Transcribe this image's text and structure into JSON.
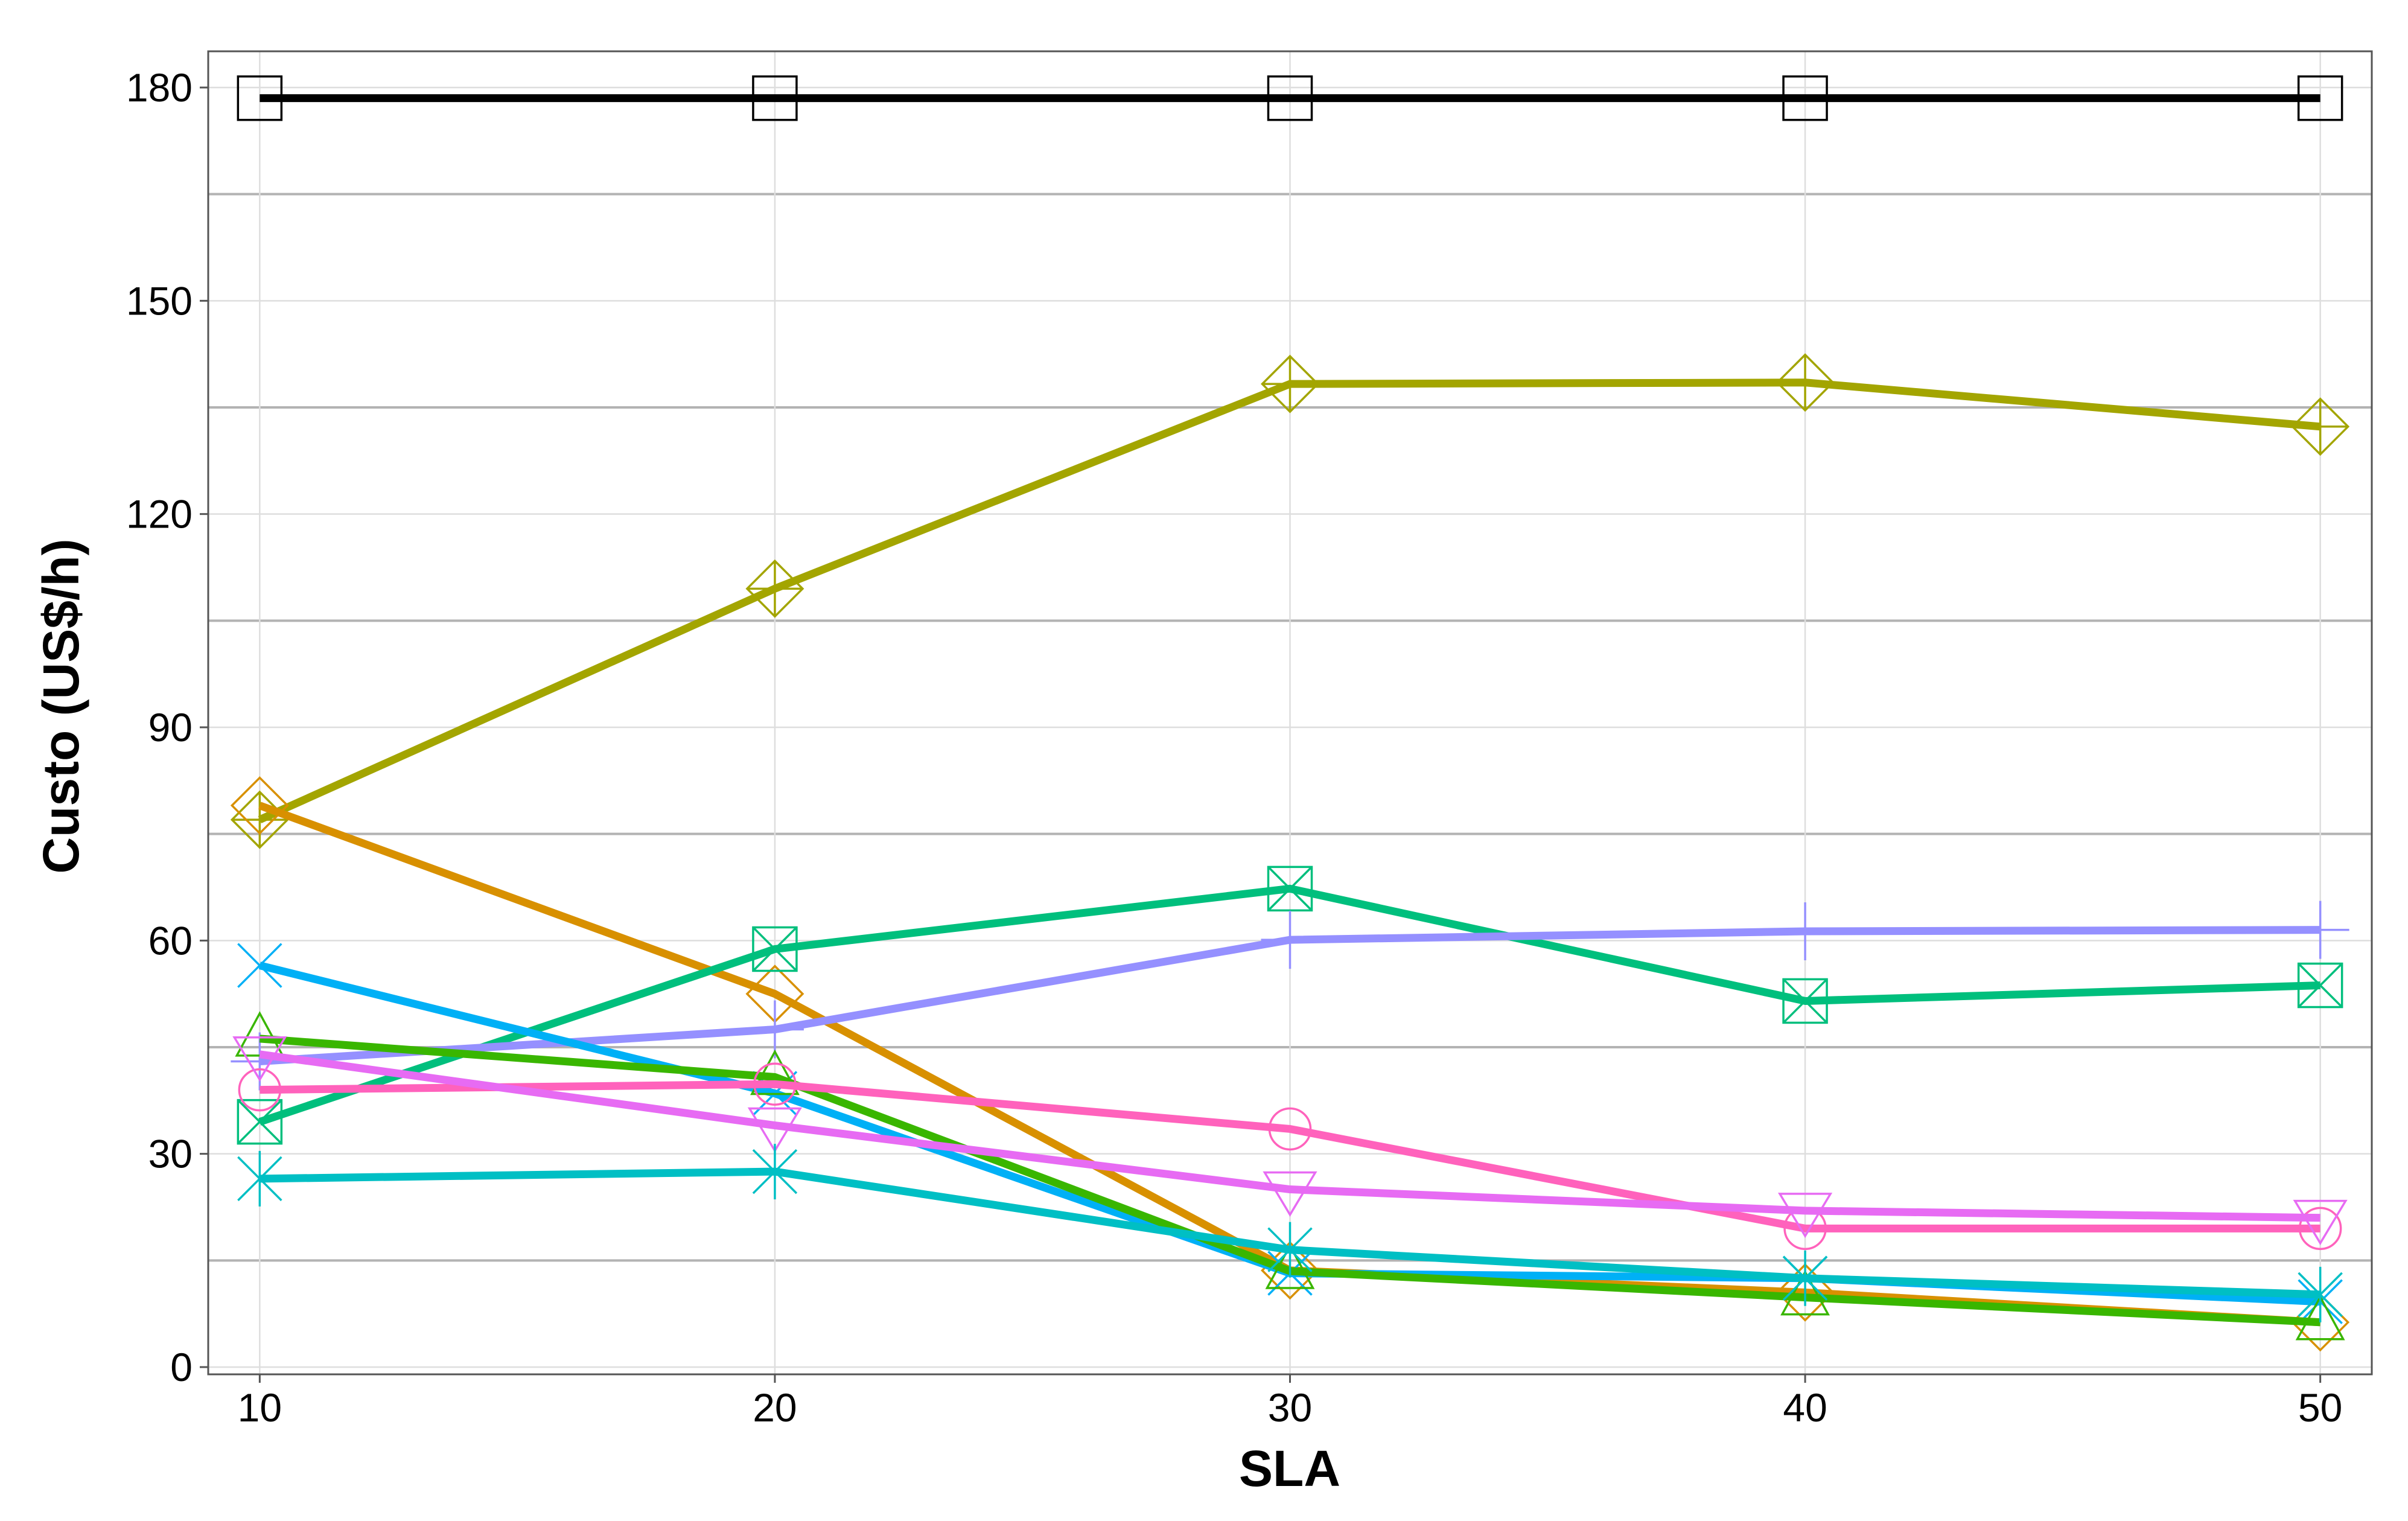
{
  "chart_data": {
    "type": "line",
    "title": "",
    "xlabel": "SLA",
    "ylabel": "Custo (US$/h)",
    "x": [
      10,
      20,
      30,
      40,
      50
    ],
    "xlim": [
      9,
      51
    ],
    "ylim": [
      0,
      180
    ],
    "xticks": [
      10,
      20,
      30,
      40,
      50
    ],
    "yticks": [
      0,
      30,
      60,
      90,
      120,
      150,
      180
    ],
    "grid": true,
    "legend": "none",
    "series": [
      {
        "color": "#000000",
        "marker": "square",
        "values": [
          178.5,
          178.5,
          178.5,
          178.5,
          178.5
        ]
      },
      {
        "color": "#A3A500",
        "marker": "diamond-plus",
        "values": [
          77,
          109.5,
          138.3,
          138.5,
          132.3
        ]
      },
      {
        "color": "#D89000",
        "marker": "diamond",
        "values": [
          79,
          52.5,
          13.6,
          10.5,
          6.3
        ]
      },
      {
        "color": "#00BF7D",
        "marker": "square-cross",
        "values": [
          34.5,
          58.8,
          67.3,
          51.5,
          53.7
        ]
      },
      {
        "color": "#9590FF",
        "marker": "plus",
        "values": [
          43,
          47.5,
          60.1,
          61.3,
          61.5
        ]
      },
      {
        "color": "#00B0F6",
        "marker": "cross",
        "values": [
          56.5,
          38.5,
          13.2,
          12.5,
          9.2
        ]
      },
      {
        "color": "#39B600",
        "marker": "triangle",
        "values": [
          46.2,
          40.8,
          13.5,
          9.8,
          6.3
        ]
      },
      {
        "color": "#FF62BC",
        "marker": "circle",
        "values": [
          39,
          39.8,
          33.5,
          19.5,
          19.5
        ]
      },
      {
        "color": "#E76BF3",
        "marker": "triangle-down",
        "values": [
          44,
          34,
          25,
          22,
          21
        ]
      },
      {
        "color": "#00BFC4",
        "marker": "asterisk",
        "values": [
          26.5,
          27.5,
          16.5,
          12.5,
          10.2
        ]
      }
    ]
  }
}
